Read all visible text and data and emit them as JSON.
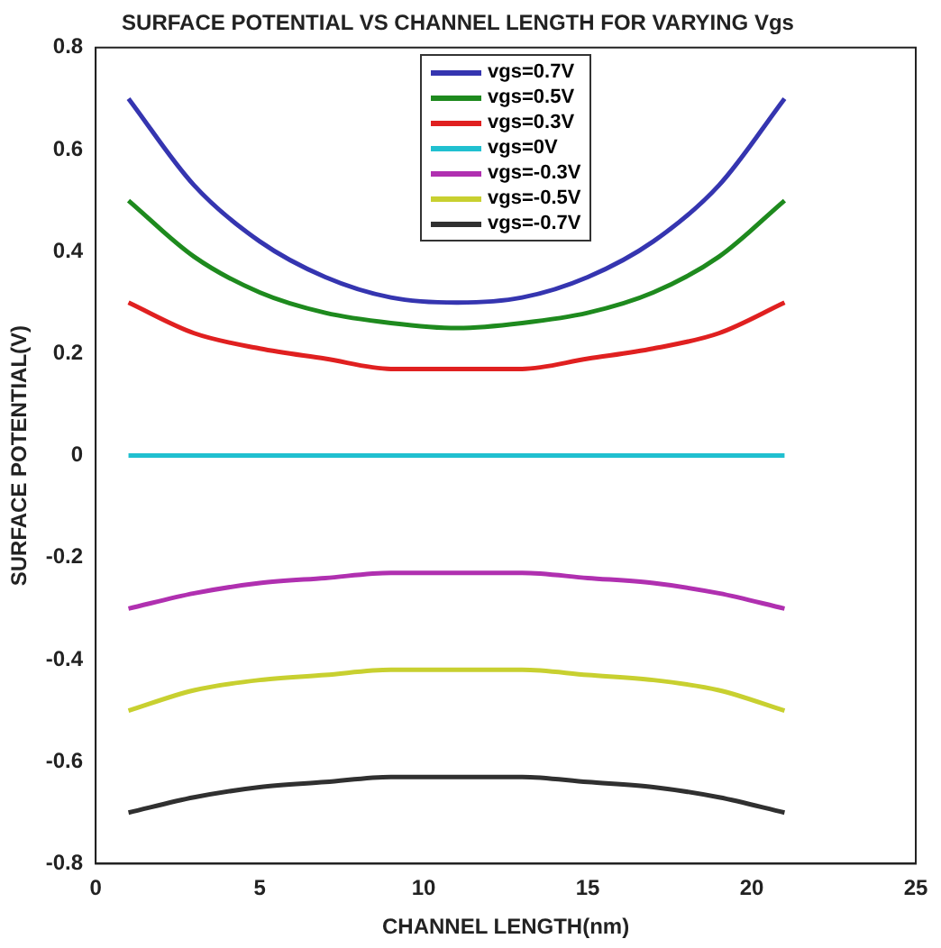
{
  "chart_data": {
    "type": "line",
    "title": "SURFACE POTENTIAL VS CHANNEL LENGTH FOR VARYING Vgs",
    "xlabel": "CHANNEL LENGTH(nm)",
    "ylabel": "SURFACE POTENTIAL(V)",
    "x": [
      1,
      3,
      5,
      7,
      9,
      11,
      13,
      15,
      17,
      19,
      21
    ],
    "xlim": [
      0,
      25
    ],
    "xticks": [
      0,
      5,
      10,
      15,
      20,
      25
    ],
    "ylim": [
      -0.8,
      0.8
    ],
    "yticks": [
      -0.8,
      -0.6,
      -0.4,
      -0.2,
      0,
      0.2,
      0.4,
      0.6,
      0.8
    ],
    "grid": false,
    "legend": "top",
    "marker": "none",
    "line_style": "solid",
    "series": [
      {
        "name": "vgs=0.7V",
        "color": "#3535b0",
        "values": [
          0.7,
          0.53,
          0.42,
          0.35,
          0.31,
          0.3,
          0.31,
          0.35,
          0.42,
          0.53,
          0.7
        ]
      },
      {
        "name": "vgs=0.5V",
        "color": "#1e8a1e",
        "values": [
          0.5,
          0.39,
          0.32,
          0.28,
          0.26,
          0.25,
          0.26,
          0.28,
          0.32,
          0.39,
          0.5
        ]
      },
      {
        "name": "vgs=0.3V",
        "color": "#e02020",
        "values": [
          0.3,
          0.24,
          0.21,
          0.19,
          0.17,
          0.17,
          0.17,
          0.19,
          0.21,
          0.24,
          0.3
        ]
      },
      {
        "name": "vgs=0V",
        "color": "#20c0d0",
        "values": [
          0,
          0,
          0,
          0,
          0,
          0,
          0,
          0,
          0,
          0,
          0
        ]
      },
      {
        "name": "vgs=-0.3V",
        "color": "#b030b0",
        "values": [
          -0.3,
          -0.27,
          -0.25,
          -0.24,
          -0.23,
          -0.23,
          -0.23,
          -0.24,
          -0.25,
          -0.27,
          -0.3
        ]
      },
      {
        "name": "vgs=-0.5V",
        "color": "#c8d030",
        "values": [
          -0.5,
          -0.46,
          -0.44,
          -0.43,
          -0.42,
          -0.42,
          -0.42,
          -0.43,
          -0.44,
          -0.46,
          -0.5
        ]
      },
      {
        "name": "vgs=-0.7V",
        "color": "#303030",
        "values": [
          -0.7,
          -0.67,
          -0.65,
          -0.64,
          -0.63,
          -0.63,
          -0.63,
          -0.64,
          -0.65,
          -0.67,
          -0.7
        ]
      }
    ]
  }
}
